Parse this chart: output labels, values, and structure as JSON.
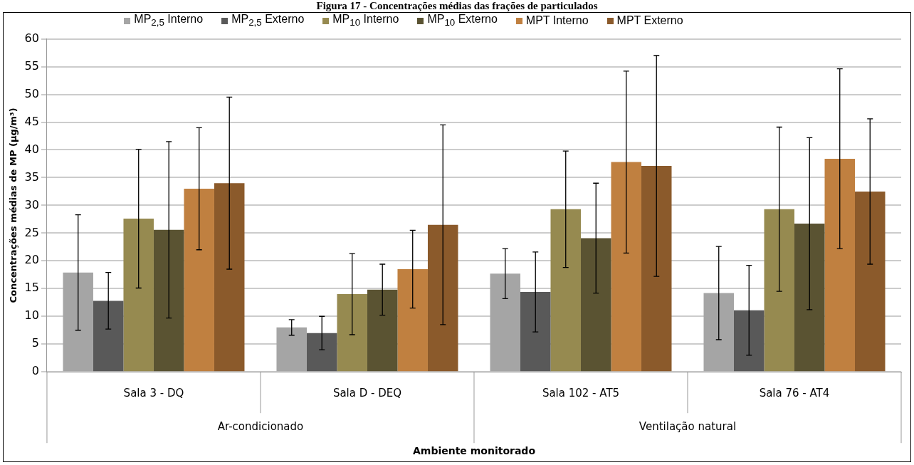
{
  "chart_data": {
    "type": "bar",
    "title": "Figura 17 - Concentrações médias das frações de particulados",
    "xlabel": "Ambiente monitorado",
    "ylabel": "Concentrações médias de MP (µg/m³)",
    "categories": [
      "Sala 3 - DQ",
      "Sala D - DEQ",
      "Sala 102 - AT5",
      "Sala 76 - AT4"
    ],
    "annotations": [
      "Ar-condicionado",
      "Ventilação natural"
    ],
    "series": [
      {
        "name": "MP$_{2,5}$ Interno",
        "color": "#a5a5a5",
        "values": [
          17.9,
          8,
          17.7,
          14.2
        ],
        "errors": [
          10.4,
          1.4,
          4.5,
          8.4
        ]
      },
      {
        "name": "MP$_{2,5}$ Externo",
        "color": "#595959",
        "values": [
          12.8,
          7,
          14.4,
          11.1
        ],
        "errors": [
          5.1,
          3,
          7.2,
          8.1
        ]
      },
      {
        "name": "MP$_{10}$ Interno",
        "color": "#968a50",
        "values": [
          27.6,
          14,
          29.3,
          29.3
        ],
        "errors": [
          12.5,
          7.3,
          10.5,
          14.8
        ]
      },
      {
        "name": "MP$_{10}$ Externo",
        "color": "#5a5332",
        "values": [
          25.6,
          14.8,
          24.1,
          26.7
        ],
        "errors": [
          15.9,
          4.6,
          9.9,
          15.5
        ]
      },
      {
        "name": "MPT Interno",
        "color": "#c08040",
        "values": [
          33,
          18.5,
          37.8,
          38.4
        ],
        "errors": [
          11,
          7,
          16.4,
          16.2
        ]
      },
      {
        "name": "MPT Externo",
        "color": "#8b5a2b",
        "values": [
          34,
          26.5,
          37.1,
          32.5
        ],
        "errors": [
          15.5,
          18,
          19.9,
          13.1
        ]
      }
    ],
    "ylim": [
      0,
      60
    ],
    "yticks": [
      0,
      5,
      10,
      15,
      20,
      25,
      30,
      35,
      40,
      45,
      50,
      55,
      60
    ],
    "grid": "y",
    "legend": "top"
  }
}
